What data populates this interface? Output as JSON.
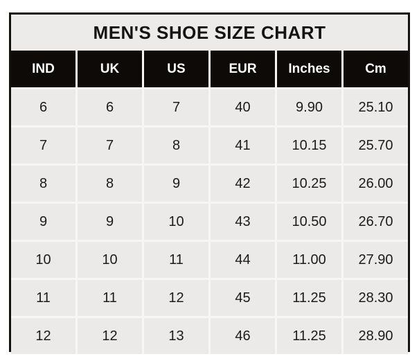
{
  "colors": {
    "title_bg": "#edebe9",
    "header_bg": "#0d0a08",
    "header_text": "#fdfdfd",
    "cell_bg": "#eceae8",
    "gridline": "#f7f6f4",
    "border": "#151310",
    "body_text": "#1d1b1a"
  },
  "chart_data": {
    "type": "table",
    "title": "MEN'S SHOE SIZE CHART",
    "columns": [
      "IND",
      "UK",
      "US",
      "EUR",
      "Inches",
      "Cm"
    ],
    "rows": [
      [
        "6",
        "6",
        "7",
        "40",
        "9.90",
        "25.10"
      ],
      [
        "7",
        "7",
        "8",
        "41",
        "10.15",
        "25.70"
      ],
      [
        "8",
        "8",
        "9",
        "42",
        "10.25",
        "26.00"
      ],
      [
        "9",
        "9",
        "10",
        "43",
        "10.50",
        "26.70"
      ],
      [
        "10",
        "10",
        "11",
        "44",
        "11.00",
        "27.90"
      ],
      [
        "11",
        "11",
        "12",
        "45",
        "11.25",
        "28.30"
      ],
      [
        "12",
        "12",
        "13",
        "46",
        "11.25",
        "28.90"
      ]
    ]
  }
}
